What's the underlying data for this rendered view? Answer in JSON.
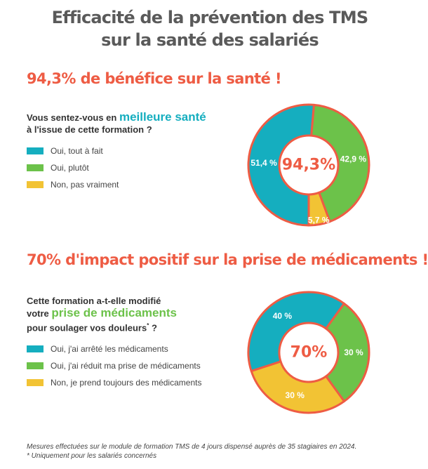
{
  "title": {
    "line1": "Efficacité de la prévention des TMS",
    "line2": "sur la santé des salariés"
  },
  "colors": {
    "teal": "#15aebf",
    "green": "#6cc24a",
    "yellow": "#f2c334",
    "accent": "#ee5c44"
  },
  "section1": {
    "headline": "94,3% de bénéfice sur la santé !",
    "question_pre": "Vous sentez-vous en",
    "question_highlight": "meilleure santé",
    "question_post": "à l'issue de cette formation ?"
  },
  "section2": {
    "headline": "70% d'impact positif sur la prise de médicaments !",
    "question_line1": "Cette formation a-t-elle modifié",
    "question_pre": "votre",
    "question_highlight": "prise de médicaments",
    "question_line3": "pour soulager vos douleurs",
    "question_star": "*",
    "question_end": " ?"
  },
  "chart_data": [
    {
      "type": "pie",
      "categories": [
        "Oui, tout à fait",
        "Oui, plutôt",
        "Non, pas vraiment"
      ],
      "values": [
        51.4,
        42.9,
        5.7
      ],
      "value_labels": [
        "51,4 %",
        "42,9 %",
        "5,7 %"
      ],
      "colors": [
        "#15aebf",
        "#6cc24a",
        "#f2c334"
      ],
      "center_label": "94,3%"
    },
    {
      "type": "pie",
      "categories": [
        "Oui, j'ai arrêté les médicaments",
        "Oui, j'ai réduit ma prise de médicaments",
        "Non, je prend toujours des médicaments"
      ],
      "values": [
        40,
        30,
        30
      ],
      "value_labels": [
        "40 %",
        "30 %",
        "30 %"
      ],
      "colors": [
        "#15aebf",
        "#6cc24a",
        "#f2c334"
      ],
      "center_label": "70%"
    }
  ],
  "footnote": {
    "line1": "Mesures effectuées sur le module de formation TMS de 4 jours dispensé auprès de 35 stagiaires en 2024.",
    "line2": "* Uniquement pour les salariés concernés"
  }
}
